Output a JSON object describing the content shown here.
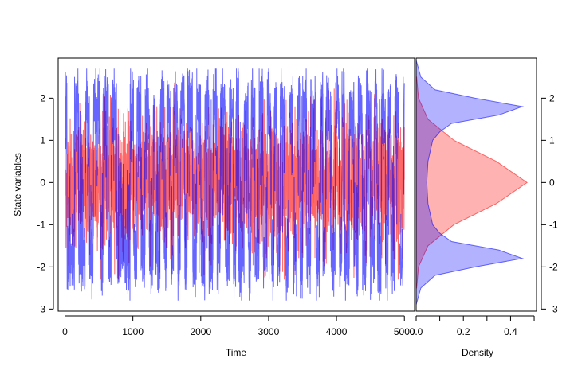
{
  "chart_data": [
    {
      "type": "line",
      "xlabel": "Time",
      "ylabel": "State variables",
      "xlim": [
        -100,
        5150
      ],
      "ylim": [
        -3.05,
        2.95
      ],
      "x_ticks": [
        0,
        1000,
        2000,
        3000,
        4000,
        5000
      ],
      "x_tick_labels": [
        "0",
        "1000",
        "2000",
        "3000",
        "4000",
        "5000"
      ],
      "y_ticks": [
        -3,
        -2,
        -1,
        0,
        1,
        2
      ],
      "y_tick_labels": [
        "-3",
        "-2",
        "-1",
        "0",
        "1",
        "2"
      ],
      "grid": false,
      "series": [
        {
          "color": "#ff0000",
          "x_range": [
            0,
            5000
          ],
          "y_range": [
            -2.3,
            2.5
          ],
          "mean_level": 0,
          "typical_band": [
            -1.2,
            1.2
          ]
        },
        {
          "color": "#0000ff",
          "x_range": [
            0,
            5000
          ],
          "y_range": [
            -2.8,
            2.7
          ],
          "wells": [
            -1.8,
            1.8
          ],
          "switch_times": [
            30,
            140,
            200,
            300,
            360,
            420,
            520,
            560,
            640,
            680,
            760,
            960,
            1010,
            1060,
            1120,
            1180,
            1240,
            1300,
            1330,
            1400,
            1460,
            1500,
            1560,
            1600,
            1660,
            1700,
            1760,
            1800,
            1880,
            1940,
            2000,
            2060,
            2120,
            2180,
            2240,
            2290,
            2360,
            2420,
            2480,
            2520,
            2560,
            2640,
            2700,
            2740,
            2800,
            2860,
            2920,
            2980,
            3040,
            3080,
            3120,
            3170,
            3240,
            3300,
            3360,
            3420,
            3460,
            3500,
            3560,
            3620,
            3700,
            3760,
            3800,
            3840,
            3920,
            3980,
            4040,
            4080,
            4120,
            4190,
            4260,
            4320,
            4380,
            4440,
            4500,
            4560,
            4600,
            4660,
            4720,
            4760,
            4800,
            4860,
            4920,
            4980
          ]
        }
      ]
    },
    {
      "type": "area",
      "orientation": "horizontal",
      "xlabel": "Density",
      "xlim": [
        0,
        0.51
      ],
      "ylim": [
        -3.05,
        2.95
      ],
      "x_ticks": [
        0,
        0.1,
        0.2,
        0.3,
        0.4,
        0.5
      ],
      "x_tick_labels": [
        "0.0",
        "",
        "0.2",
        "",
        "0.4",
        ""
      ],
      "y_ticks": [
        -3,
        -2,
        -1,
        0,
        1,
        2
      ],
      "y_tick_labels": [
        "-3",
        "-2",
        "-1",
        "0",
        "1",
        "2"
      ],
      "y_axis_side": "right",
      "grid": false,
      "series": [
        {
          "fill": "rgba(255,0,0,0.30)",
          "stroke": "rgba(255,0,0,0.55)",
          "y": [
            -2.5,
            -2.0,
            -1.5,
            -1.0,
            -0.5,
            0.0,
            0.5,
            1.0,
            1.5,
            2.0,
            2.5
          ],
          "density": [
            0.002,
            0.01,
            0.05,
            0.16,
            0.34,
            0.47,
            0.34,
            0.16,
            0.05,
            0.01,
            0.002
          ]
        },
        {
          "fill": "rgba(0,0,255,0.30)",
          "stroke": "rgba(0,0,255,0.55)",
          "y": [
            -2.9,
            -2.5,
            -2.2,
            -2.0,
            -1.8,
            -1.6,
            -1.4,
            -1.2,
            -1.0,
            -0.5,
            0.0,
            0.5,
            1.0,
            1.2,
            1.4,
            1.6,
            1.8,
            2.0,
            2.2,
            2.5,
            2.9
          ],
          "density": [
            0.0,
            0.02,
            0.08,
            0.25,
            0.45,
            0.35,
            0.15,
            0.1,
            0.07,
            0.05,
            0.045,
            0.05,
            0.07,
            0.1,
            0.15,
            0.35,
            0.45,
            0.25,
            0.08,
            0.02,
            0.0
          ]
        }
      ]
    }
  ]
}
